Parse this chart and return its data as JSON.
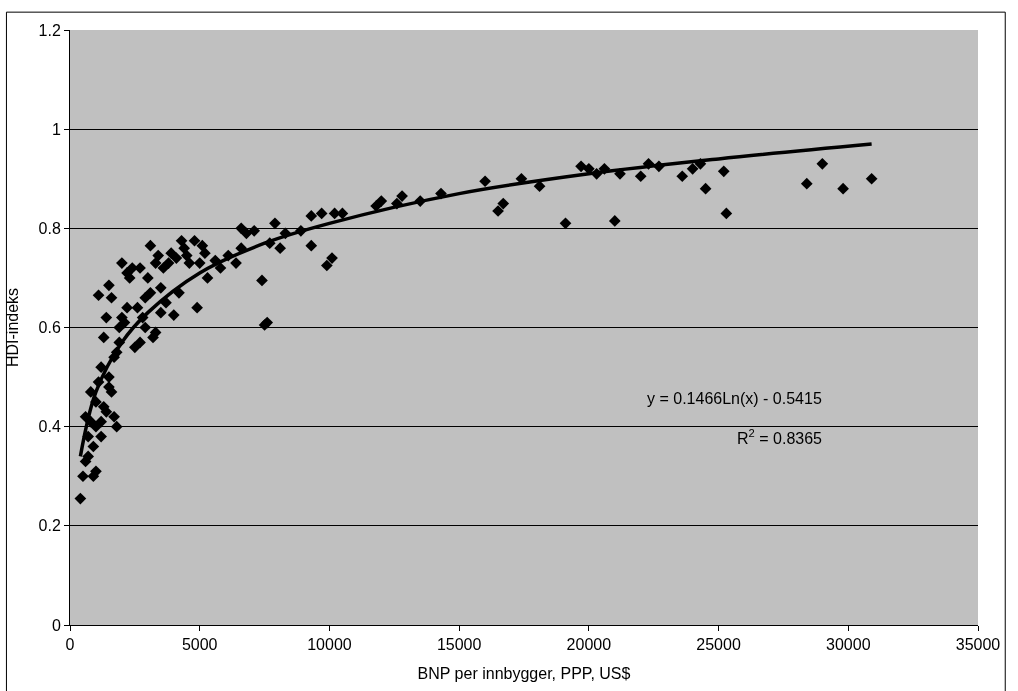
{
  "chart_data": {
    "type": "scatter",
    "xlabel": "BNP per innbygger, PPP, US$",
    "ylabel": "HDI-indeks",
    "xlim": [
      0,
      35000
    ],
    "xticks": [
      0,
      5000,
      10000,
      15000,
      20000,
      25000,
      30000,
      35000
    ],
    "ylim": [
      0,
      1.2
    ],
    "yticks": [
      0,
      0.2,
      0.4,
      0.6,
      0.8,
      1,
      1.2
    ],
    "grid": "y",
    "marker": "diamond",
    "annotations": [
      "y = 0.1466Ln(x) - 0.5415",
      "R$^{2}$ = 0.8365"
    ],
    "series": [
      {
        "color": "#000000",
        "x": [
          30900,
          29800,
          29000,
          28400,
          25300,
          25200,
          24500,
          24300,
          24000,
          23600,
          22700,
          22300,
          22000,
          21200,
          21000,
          20600,
          20300,
          20000,
          19700,
          19100,
          18100,
          17400,
          16700,
          16500,
          16000,
          14300,
          13500,
          12800,
          12600,
          12000,
          11800,
          10500,
          10200,
          10100,
          9900,
          9700,
          9300,
          9300,
          8900,
          8300,
          8100,
          7900,
          7700,
          7600,
          7500,
          7400,
          7100,
          6800,
          6600,
          6400,
          6600,
          6100,
          5800,
          5300,
          5100,
          4900,
          4800,
          4600,
          4400,
          4300,
          4200,
          4000,
          3900,
          3800,
          3600,
          3500,
          3400,
          3300,
          3200,
          3100,
          3000,
          2900,
          2800,
          2700,
          2500,
          2400,
          2300,
          2200,
          2100,
          2000,
          1900,
          1800,
          1800,
          1700,
          1600,
          1500,
          1400,
          1300,
          1200,
          1100,
          1000,
          900,
          800,
          700,
          600,
          500,
          400,
          700,
          1000,
          1200,
          1400,
          1500,
          1600,
          1300,
          900,
          1100,
          800,
          1700,
          2000,
          2200,
          2600,
          3100,
          3300,
          3700,
          4100,
          4500,
          5000,
          5200,
          5600,
          3500,
          2900,
          1500,
          1900,
          2700,
          1200,
          600,
          1000
        ],
        "values": [
          0.9,
          0.88,
          0.93,
          0.89,
          0.83,
          0.915,
          0.88,
          0.93,
          0.92,
          0.905,
          0.925,
          0.93,
          0.905,
          0.91,
          0.815,
          0.92,
          0.91,
          0.92,
          0.925,
          0.81,
          0.885,
          0.9,
          0.85,
          0.835,
          0.895,
          0.87,
          0.855,
          0.865,
          0.85,
          0.855,
          0.845,
          0.83,
          0.83,
          0.74,
          0.725,
          0.83,
          0.825,
          0.765,
          0.795,
          0.79,
          0.76,
          0.81,
          0.77,
          0.61,
          0.605,
          0.695,
          0.795,
          0.79,
          0.8,
          0.73,
          0.76,
          0.745,
          0.72,
          0.7,
          0.765,
          0.64,
          0.775,
          0.73,
          0.76,
          0.775,
          0.67,
          0.625,
          0.75,
          0.73,
          0.72,
          0.68,
          0.745,
          0.59,
          0.58,
          0.765,
          0.7,
          0.66,
          0.62,
          0.57,
          0.56,
          0.72,
          0.7,
          0.64,
          0.61,
          0.73,
          0.57,
          0.55,
          0.4,
          0.42,
          0.66,
          0.685,
          0.62,
          0.58,
          0.52,
          0.665,
          0.45,
          0.3,
          0.47,
          0.38,
          0.42,
          0.3,
          0.255,
          0.34,
          0.4,
          0.38,
          0.43,
          0.5,
          0.47,
          0.44,
          0.36,
          0.49,
          0.41,
          0.54,
          0.62,
          0.71,
          0.64,
          0.67,
          0.73,
          0.65,
          0.74,
          0.745,
          0.73,
          0.75,
          0.735,
          0.63,
          0.6,
          0.48,
          0.6,
          0.72,
          0.41,
          0.33,
          0.31
        ]
      },
      {
        "type": "line",
        "color": "#000000",
        "marker": "none",
        "x": [
          400,
          1000,
          2000,
          3000,
          5000,
          7500,
          10000,
          15000,
          20000,
          25000,
          30900
        ],
        "values": [
          0.34,
          0.47,
          0.57,
          0.63,
          0.71,
          0.77,
          0.81,
          0.87,
          0.91,
          0.94,
          0.97
        ]
      }
    ]
  }
}
